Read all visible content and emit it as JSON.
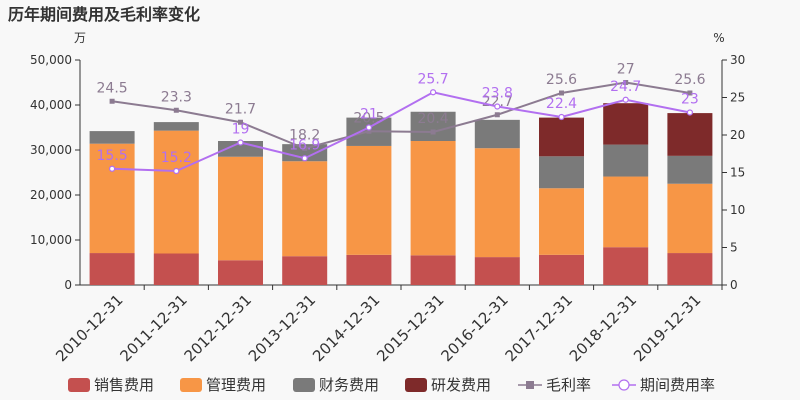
{
  "title": "历年期间费用及毛利率变化",
  "chart_data": {
    "type": "bar",
    "title": "历年期间费用及毛利率变化",
    "y_left_unit": "万",
    "y_right_unit": "%",
    "y_left_range": [
      0,
      50000
    ],
    "y_left_ticks": [
      "0",
      "10,000",
      "20,000",
      "30,000",
      "40,000",
      "50,000"
    ],
    "y_right_range": [
      0,
      30
    ],
    "y_right_ticks": [
      "0",
      "5",
      "10",
      "15",
      "20",
      "25",
      "30"
    ],
    "categories": [
      "2010-12-31",
      "2011-12-31",
      "2012-12-31",
      "2013-12-31",
      "2014-12-31",
      "2015-12-31",
      "2016-12-31",
      "2017-12-31",
      "2018-12-31",
      "2019-12-31"
    ],
    "bar_series": [
      {
        "name": "销售费用",
        "color": "#c4504f",
        "values": [
          7100,
          7000,
          5500,
          6400,
          6700,
          6600,
          6200,
          6700,
          8400,
          7100
        ]
      },
      {
        "name": "管理费用",
        "color": "#f79646",
        "values": [
          24300,
          27300,
          23000,
          21100,
          24200,
          25400,
          24200,
          14800,
          15700,
          15400
        ]
      },
      {
        "name": "财务费用",
        "color": "#7a7a7a",
        "values": [
          2800,
          1900,
          3500,
          3800,
          6300,
          6500,
          6300,
          7100,
          7100,
          6200
        ]
      },
      {
        "name": "研发费用",
        "color": "#7e2a2a",
        "values": [
          0,
          0,
          0,
          0,
          0,
          0,
          0,
          8600,
          9200,
          9500
        ]
      }
    ],
    "line_series": [
      {
        "name": "毛利率",
        "color": "#8c7b91",
        "marker": "square",
        "values": [
          24.5,
          23.3,
          21.7,
          18.2,
          20.5,
          20.4,
          22.7,
          25.6,
          27,
          25.6
        ],
        "labels": [
          "24.5",
          "23.3",
          "21.7",
          "18.2",
          "20.5",
          "20.4",
          "22.7",
          "25.6",
          "27",
          "25.6"
        ]
      },
      {
        "name": "期间费用率",
        "color": "#b26ff0",
        "marker": "circle",
        "values": [
          15.5,
          15.2,
          19,
          16.9,
          21,
          25.7,
          23.8,
          22.4,
          24.7,
          23
        ],
        "labels": [
          "15.5",
          "15.2",
          "19",
          "16.9",
          "21",
          "25.7",
          "23.8",
          "22.4",
          "24.7",
          "23"
        ]
      }
    ],
    "legend": [
      "销售费用",
      "管理费用",
      "财务费用",
      "研发费用",
      "毛利率",
      "期间费用率"
    ],
    "legend_position": "bottom",
    "grid": false
  }
}
